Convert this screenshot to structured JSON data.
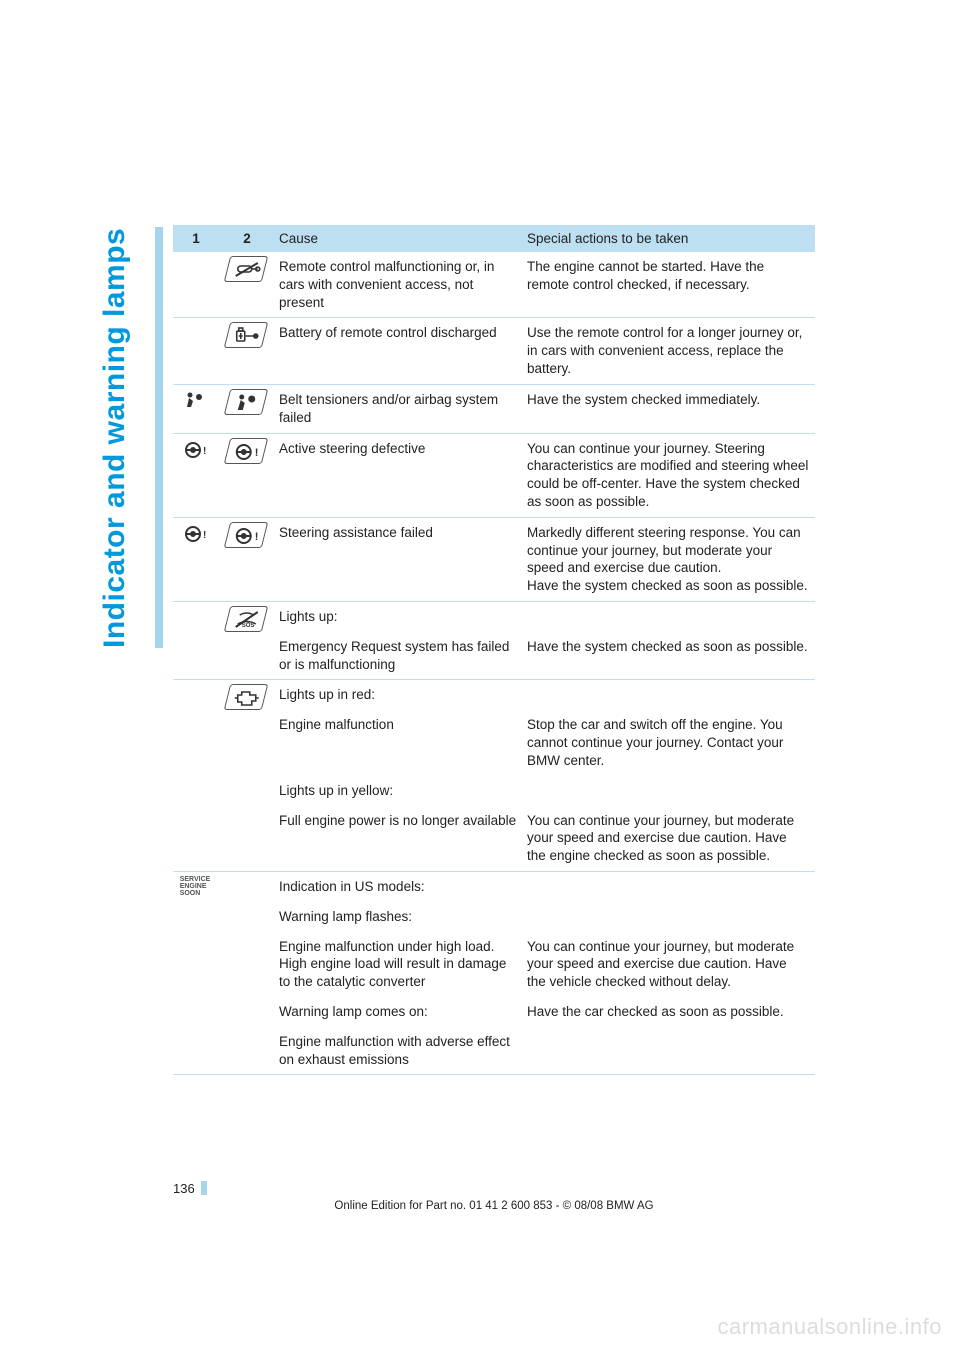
{
  "sideTitle": "Indicator and warning lamps",
  "header": {
    "c1": "1",
    "c2": "2",
    "c3": "Cause",
    "c4": "Special actions to be taken"
  },
  "rows": [
    {
      "icon1": null,
      "icon2": "remote",
      "cause": "Remote control malfunctioning or, in cars with convenient access, not present",
      "action": "The engine cannot be started. Have the remote control checked, if necessary."
    },
    {
      "icon1": null,
      "icon2": "battery",
      "cause": "Battery of remote control discharged",
      "action": "Use the remote control for a longer journey or, in cars with convenient access, replace the battery."
    },
    {
      "icon1": "airbag-small",
      "icon2": "airbag",
      "cause": "Belt tensioners and/or airbag system failed",
      "action": "Have the system checked immediately."
    },
    {
      "icon1": "steer-small",
      "icon2": "steer",
      "cause": "Active steering defective",
      "action": "You can continue your journey. Steering characteristics are modified and steering wheel could be off-center. Have the system checked as soon as possible."
    },
    {
      "icon1": "steer-small",
      "icon2": "steer",
      "cause": "Steering assistance failed",
      "action": "Markedly different steering response. You can continue your journey, but moderate your speed and exercise due caution.\nHave the system checked as soon as possible."
    },
    {
      "icon1": null,
      "icon2": "sos",
      "causeHeader": "Lights up:",
      "cause": "Emergency Request system has failed or is malfunctioning",
      "action": "Have the system checked as soon as possible."
    },
    {
      "icon1": null,
      "icon2": "engine",
      "blocks": [
        {
          "header": "Lights up in red:",
          "cause": "Engine malfunction",
          "action": "Stop the car and switch off the engine. You cannot continue your journey. Contact your BMW center."
        },
        {
          "header": "Lights up in yellow:",
          "cause": "Full engine power is no longer available",
          "action": "You can continue your journey, but moderate your speed and exercise due caution. Have the engine checked as soon as possible."
        }
      ]
    },
    {
      "icon1": "ses",
      "icon2": null,
      "blocks": [
        {
          "header": "Indication in US models:",
          "cause": "",
          "action": ""
        },
        {
          "header": "Warning lamp flashes:",
          "cause": "Engine malfunction under high load. High engine load will result in damage to the catalytic converter",
          "action": "You can continue your journey, but moderate your speed and exercise due caution. Have the vehicle checked without delay."
        },
        {
          "header": "Warning lamp comes on:",
          "cause": "Engine malfunction with adverse effect on exhaust emissions",
          "action": "Have the car checked as soon as possible."
        }
      ]
    }
  ],
  "sesText": [
    "SERVICE",
    "ENGINE",
    "SOON"
  ],
  "pageNumber": "136",
  "footer": "Online Edition for Part no. 01 41 2 600 853 - © 08/08 BMW AG",
  "watermark": "carmanualsonline.info",
  "colors": {
    "accent": "#0099dd",
    "headerBg": "#bcdff1",
    "barBg": "#a4d4ee",
    "text": "#222222",
    "watermark": "#dcdcdc"
  }
}
